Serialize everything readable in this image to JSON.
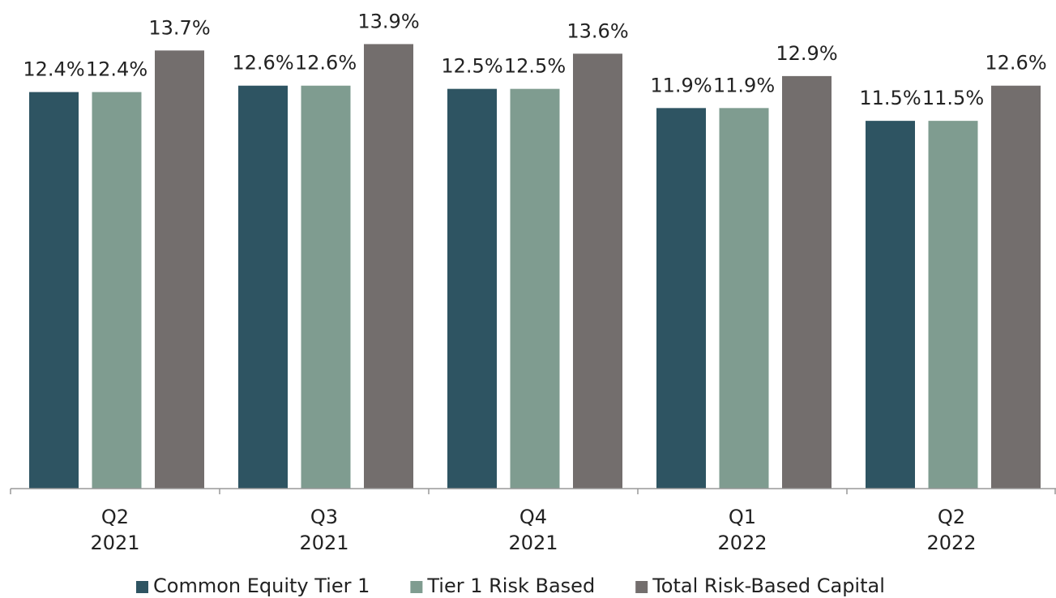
{
  "chart_data": {
    "type": "bar",
    "categories": [
      "Q2\n2021",
      "Q3\n2021",
      "Q4\n2021",
      "Q1\n2022",
      "Q2\n2022"
    ],
    "series": [
      {
        "name": "Common Equity Tier 1",
        "color": "#2e5462",
        "values": [
          12.4,
          12.6,
          12.5,
          11.9,
          11.5
        ],
        "value_labels": [
          "12.4%",
          "12.6%",
          "12.5%",
          "11.9%",
          "11.5%"
        ]
      },
      {
        "name": "Tier 1 Risk Based",
        "color": "#7f9c90",
        "values": [
          12.4,
          12.6,
          12.5,
          11.9,
          11.5
        ],
        "value_labels": [
          "12.4%",
          "12.6%",
          "12.5%",
          "11.9%",
          "11.5%"
        ]
      },
      {
        "name": "Total Risk-Based Capital",
        "color": "#736e6d",
        "values": [
          13.7,
          13.9,
          13.6,
          12.9,
          12.6
        ],
        "value_labels": [
          "13.7%",
          "13.9%",
          "13.6%",
          "12.9%",
          "12.6%"
        ]
      }
    ],
    "ylim": [
      0,
      15
    ],
    "legend": "bottom"
  }
}
